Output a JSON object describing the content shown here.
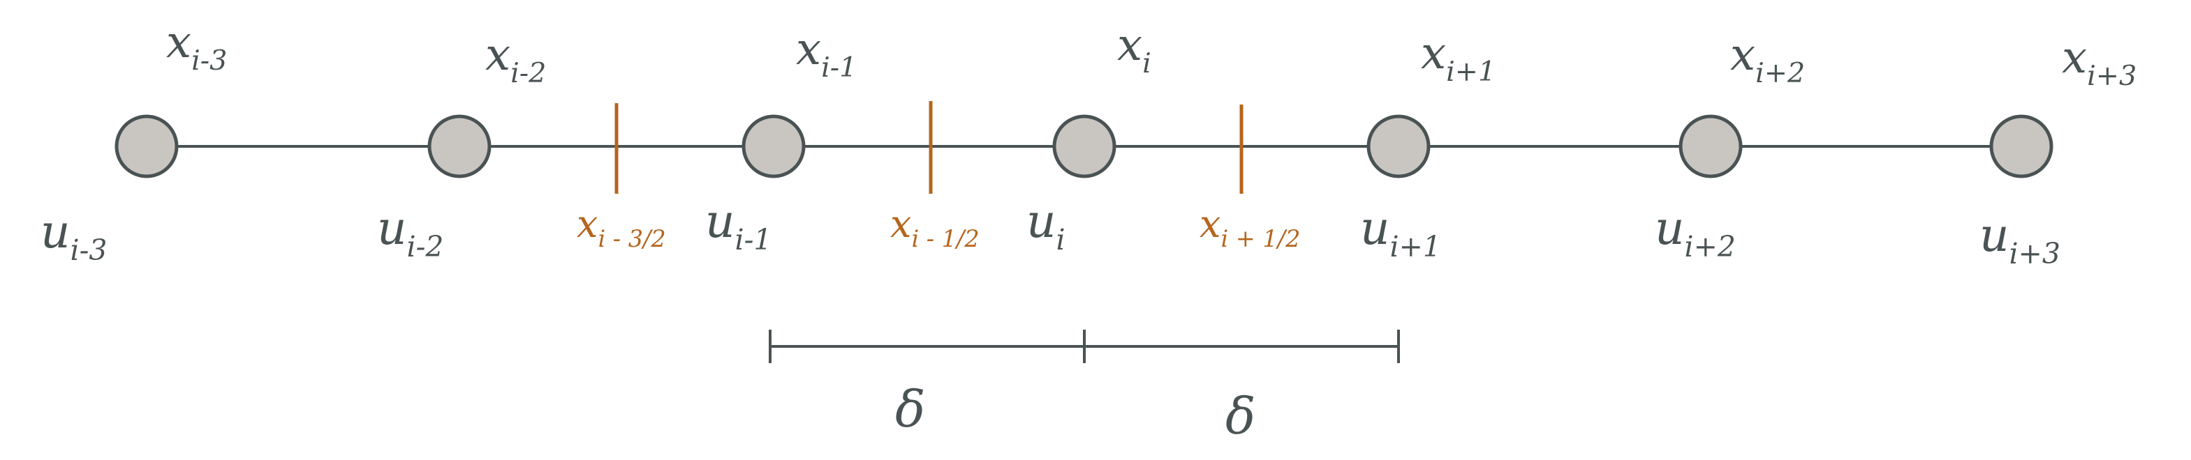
{
  "colors": {
    "ink": "#4a5354",
    "node_fill": "#c9c6c2",
    "face": "#b5651d",
    "background": "#ffffff"
  },
  "nodes": [
    {
      "x_label": "x",
      "x_sub": "i-3",
      "u_label": "u",
      "u_sub": "i-3"
    },
    {
      "x_label": "x",
      "x_sub": "i-2",
      "u_label": "u",
      "u_sub": "i-2"
    },
    {
      "x_label": "x",
      "x_sub": "i-1",
      "u_label": "u",
      "u_sub": "i-1"
    },
    {
      "x_label": "x",
      "x_sub": "i",
      "u_label": "u",
      "u_sub": "i"
    },
    {
      "x_label": "x",
      "x_sub": "i+1",
      "u_label": "u",
      "u_sub": "i+1"
    },
    {
      "x_label": "x",
      "x_sub": "i+2",
      "u_label": "u",
      "u_sub": "i+2"
    },
    {
      "x_label": "x",
      "x_sub": "i+3",
      "u_label": "u",
      "u_sub": "i+3"
    }
  ],
  "faces": [
    {
      "label": "x",
      "sub": "i - 3/2"
    },
    {
      "label": "x",
      "sub": "i - 1/2"
    },
    {
      "label": "x",
      "sub": "i + 1/2"
    }
  ],
  "spacing": [
    {
      "label": "δ"
    },
    {
      "label": "δ"
    }
  ]
}
